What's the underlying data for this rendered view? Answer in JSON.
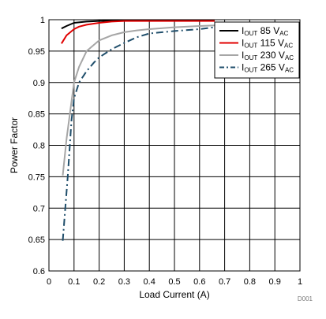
{
  "chart_data": {
    "type": "line",
    "title": "",
    "xlabel": "Load Current (A)",
    "ylabel": "Power Factor",
    "xlim": [
      0,
      1
    ],
    "ylim": [
      0.6,
      1
    ],
    "xticks": [
      "0",
      "0.1",
      "0.2",
      "0.3",
      "0.4",
      "0.5",
      "0.6",
      "0.7",
      "0.8",
      "0.9",
      "1"
    ],
    "yticks": [
      "0.6",
      "0.65",
      "0.7",
      "0.75",
      "0.8",
      "0.85",
      "0.9",
      "0.95",
      "1"
    ],
    "grid": true,
    "legend_position": "top-right",
    "series": [
      {
        "name": "IOUT 85 VAC",
        "label_main": "I",
        "label_sub1": "OUT",
        "label_mid": " 85 V",
        "label_sub2": "AC",
        "color": "#000000",
        "dash": "solid",
        "x": [
          0.05,
          0.07,
          0.1,
          0.15,
          0.2,
          0.3,
          0.4,
          0.5,
          0.6,
          0.66
        ],
        "y": [
          0.986,
          0.99,
          0.995,
          0.997,
          0.998,
          0.999,
          0.999,
          0.999,
          0.999,
          0.999
        ]
      },
      {
        "name": "IOUT 115 VAC",
        "label_main": "I",
        "label_sub1": "OUT",
        "label_mid": " 115 V",
        "label_sub2": "AC",
        "color": "#e00000",
        "dash": "solid",
        "x": [
          0.05,
          0.07,
          0.1,
          0.12,
          0.15,
          0.2,
          0.25,
          0.3,
          0.4,
          0.5,
          0.6,
          0.66
        ],
        "y": [
          0.962,
          0.975,
          0.985,
          0.989,
          0.992,
          0.995,
          0.997,
          0.998,
          0.998,
          0.998,
          0.998,
          0.998
        ]
      },
      {
        "name": "IOUT 230 VAC",
        "label_main": "I",
        "label_sub1": "OUT",
        "label_mid": " 230 V",
        "label_sub2": "AC",
        "color": "#a6a6a6",
        "dash": "solid",
        "x": [
          0.055,
          0.07,
          0.09,
          0.1,
          0.12,
          0.15,
          0.2,
          0.25,
          0.3,
          0.35,
          0.4,
          0.5,
          0.6,
          0.66
        ],
        "y": [
          0.752,
          0.81,
          0.87,
          0.9,
          0.925,
          0.95,
          0.967,
          0.975,
          0.98,
          0.983,
          0.985,
          0.988,
          0.99,
          0.991
        ]
      },
      {
        "name": "IOUT 265 VAC",
        "label_main": "I",
        "label_sub1": "OUT",
        "label_mid": " 265 V",
        "label_sub2": "AC",
        "color": "#1f4e6b",
        "dash": "dashdot",
        "x": [
          0.055,
          0.075,
          0.09,
          0.1,
          0.12,
          0.15,
          0.18,
          0.2,
          0.25,
          0.3,
          0.35,
          0.4,
          0.5,
          0.6,
          0.66
        ],
        "y": [
          0.648,
          0.75,
          0.84,
          0.875,
          0.9,
          0.918,
          0.932,
          0.94,
          0.953,
          0.963,
          0.972,
          0.978,
          0.982,
          0.985,
          0.988
        ]
      }
    ]
  },
  "figure_id": "D001"
}
